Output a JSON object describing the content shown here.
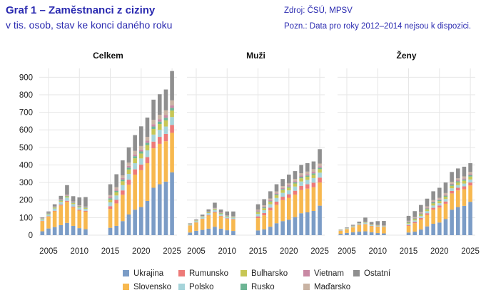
{
  "header": {
    "title": "Graf 1 – Zaměstnanci z ciziny",
    "subtitle": "v tis. osob, stav ke konci daného roku",
    "source": "Zdroj: ČSÚ, MPSV",
    "note": "Pozn.: Data pro roky 2012–2014 nejsou k dispozici."
  },
  "chart_data": {
    "type": "bar",
    "stacked": true,
    "ylim": [
      0,
      950
    ],
    "yticks": [
      0,
      100,
      200,
      300,
      400,
      500,
      600,
      700,
      800,
      900
    ],
    "xticks": [
      2005,
      2010,
      2015,
      2020,
      2025
    ],
    "grid": true,
    "legend_position": "bottom",
    "categories": [
      2004,
      2005,
      2006,
      2007,
      2008,
      2009,
      2010,
      2011,
      2015,
      2016,
      2017,
      2018,
      2019,
      2020,
      2021,
      2022,
      2023,
      2024,
      2025
    ],
    "series_order": [
      "Ukrajina",
      "Slovensko",
      "Rumunsko",
      "Polsko",
      "Bulharsko",
      "Rusko",
      "Vietnam",
      "Maďarsko",
      "Ostatní"
    ],
    "colors": {
      "Ukrajina": "#7b9cc6",
      "Slovensko": "#f7b84f",
      "Rumunsko": "#ed7a78",
      "Polsko": "#a6d4da",
      "Bulharsko": "#c7c655",
      "Rusko": "#6db594",
      "Vietnam": "#c989a4",
      "Maďarsko": "#c9b3a3",
      "Ostatní": "#8f8f8f"
    },
    "panels": [
      {
        "title": "Celkem",
        "series": [
          {
            "name": "Ukrajina",
            "values": [
              22,
              38,
              46,
              57,
              70,
              53,
              40,
              34,
              42,
              53,
              80,
              118,
              145,
              160,
              195,
              270,
              290,
              305,
              358
            ]
          },
          {
            "name": "Slovensko",
            "values": [
              58,
              68,
              90,
              112,
              120,
              105,
              100,
              100,
              108,
              128,
              150,
              170,
              200,
              210,
              215,
              225,
              230,
              230,
              225
            ]
          },
          {
            "name": "Rumunsko",
            "values": [
              2,
              2,
              3,
              5,
              6,
              5,
              5,
              5,
              15,
              20,
              25,
              28,
              30,
              32,
              35,
              38,
              40,
              42,
              45
            ]
          },
          {
            "name": "Polsko",
            "values": [
              8,
              10,
              13,
              16,
              18,
              14,
              12,
              11,
              22,
              25,
              30,
              33,
              35,
              35,
              38,
              40,
              40,
              42,
              45
            ]
          },
          {
            "name": "Bulharsko",
            "values": [
              3,
              4,
              5,
              6,
              7,
              6,
              5,
              5,
              15,
              18,
              22,
              25,
              28,
              28,
              30,
              32,
              33,
              35,
              37
            ]
          },
          {
            "name": "Rusko",
            "values": [
              1,
              2,
              2,
              3,
              3,
              3,
              3,
              3,
              8,
              9,
              10,
              11,
              12,
              12,
              13,
              14,
              14,
              15,
              15
            ]
          },
          {
            "name": "Vietnam",
            "values": [
              1,
              2,
              2,
              3,
              3,
              3,
              3,
              3,
              8,
              8,
              9,
              10,
              10,
              11,
              12,
              13,
              14,
              15,
              15
            ]
          },
          {
            "name": "Maďarsko",
            "values": [
              1,
              1,
              2,
              2,
              3,
              3,
              2,
              2,
              10,
              12,
              15,
              18,
              20,
              20,
              22,
              25,
              25,
              27,
              28
            ]
          },
          {
            "name": "Ostatní",
            "values": [
              5,
              8,
              13,
              20,
              55,
              30,
              45,
              54,
              62,
              74,
              85,
              87,
              90,
              112,
              110,
              115,
              117,
              119,
              167
            ]
          }
        ]
      },
      {
        "title": "Muži",
        "series": [
          {
            "name": "Ukrajina",
            "values": [
              15,
              25,
              30,
              37,
              48,
              37,
              28,
              24,
              27,
              33,
              48,
              68,
              80,
              88,
              103,
              125,
              130,
              138,
              168
            ]
          },
          {
            "name": "Slovensko",
            "values": [
              40,
              47,
              62,
              75,
              80,
              70,
              65,
              65,
              70,
              80,
              93,
              105,
              120,
              125,
              128,
              132,
              135,
              135,
              132
            ]
          },
          {
            "name": "Rumunsko",
            "values": [
              1,
              1,
              2,
              3,
              4,
              3,
              3,
              3,
              10,
              13,
              16,
              18,
              19,
              20,
              22,
              24,
              25,
              26,
              28
            ]
          },
          {
            "name": "Polsko",
            "values": [
              5,
              7,
              9,
              11,
              12,
              10,
              8,
              8,
              14,
              16,
              19,
              21,
              22,
              22,
              24,
              25,
              25,
              26,
              28
            ]
          },
          {
            "name": "Bulharsko",
            "values": [
              2,
              3,
              3,
              4,
              5,
              4,
              3,
              3,
              10,
              11,
              13,
              15,
              16,
              16,
              17,
              18,
              18,
              19,
              20
            ]
          },
          {
            "name": "Rusko",
            "values": [
              1,
              1,
              1,
              2,
              2,
              2,
              2,
              2,
              4,
              5,
              5,
              6,
              6,
              6,
              7,
              7,
              7,
              8,
              8
            ]
          },
          {
            "name": "Vietnam",
            "values": [
              1,
              1,
              1,
              2,
              2,
              2,
              2,
              2,
              5,
              5,
              6,
              6,
              6,
              7,
              7,
              8,
              8,
              9,
              9
            ]
          },
          {
            "name": "Maďarsko",
            "values": [
              1,
              1,
              1,
              1,
              2,
              2,
              1,
              1,
              6,
              7,
              9,
              10,
              11,
              11,
              12,
              14,
              14,
              15,
              15
            ]
          },
          {
            "name": "Ostatní",
            "values": [
              2,
              4,
              8,
              12,
              30,
              16,
              23,
              27,
              30,
              35,
              41,
              41,
              40,
              50,
              45,
              47,
              48,
              44,
              82
            ]
          }
        ]
      },
      {
        "title": "Ženy",
        "series": [
          {
            "name": "Ukrajina",
            "values": [
              7,
              13,
              16,
              20,
              22,
              16,
              12,
              10,
              15,
              20,
              32,
              50,
              65,
              72,
              92,
              145,
              160,
              167,
              190
            ]
          },
          {
            "name": "Slovensko",
            "values": [
              18,
              21,
              28,
              37,
              40,
              35,
              35,
              35,
              38,
              48,
              57,
              65,
              80,
              85,
              87,
              93,
              95,
              95,
              93
            ]
          },
          {
            "name": "Rumunsko",
            "values": [
              1,
              1,
              1,
              2,
              2,
              2,
              2,
              2,
              5,
              7,
              9,
              10,
              11,
              12,
              13,
              14,
              15,
              16,
              17
            ]
          },
          {
            "name": "Polsko",
            "values": [
              3,
              3,
              4,
              5,
              6,
              4,
              4,
              3,
              8,
              9,
              11,
              12,
              13,
              13,
              14,
              15,
              15,
              16,
              17
            ]
          },
          {
            "name": "Bulharsko",
            "values": [
              1,
              1,
              2,
              2,
              2,
              2,
              2,
              2,
              5,
              7,
              9,
              10,
              12,
              12,
              13,
              14,
              15,
              16,
              17
            ]
          },
          {
            "name": "Rusko",
            "values": [
              0,
              1,
              1,
              1,
              1,
              1,
              1,
              1,
              4,
              4,
              5,
              5,
              6,
              6,
              6,
              7,
              7,
              7,
              7
            ]
          },
          {
            "name": "Vietnam",
            "values": [
              0,
              1,
              1,
              1,
              1,
              1,
              1,
              1,
              3,
              3,
              3,
              4,
              4,
              4,
              5,
              5,
              6,
              6,
              6
            ]
          },
          {
            "name": "Maďarsko",
            "values": [
              0,
              0,
              1,
              1,
              1,
              1,
              1,
              1,
              4,
              5,
              6,
              8,
              9,
              9,
              10,
              11,
              11,
              12,
              13
            ]
          },
          {
            "name": "Ostatní",
            "values": [
              2,
              3,
              5,
              8,
              25,
              13,
              22,
              26,
              28,
              34,
              40,
              44,
              50,
              57,
              60,
              56,
              56,
              55,
              50
            ]
          }
        ]
      }
    ]
  },
  "legend": {
    "items": [
      "Ukrajina",
      "Rumunsko",
      "Bulharsko",
      "Vietnam",
      "Ostatní",
      "Slovensko",
      "Polsko",
      "Rusko",
      "Maďarsko"
    ]
  }
}
